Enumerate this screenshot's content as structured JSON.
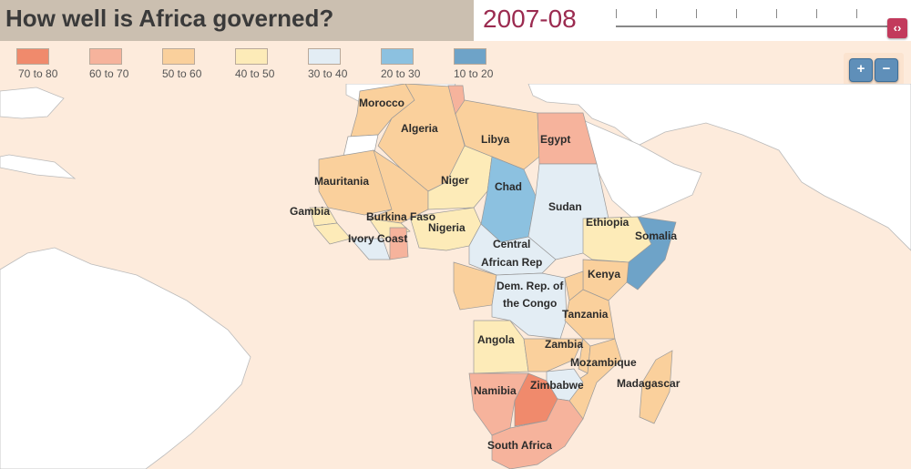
{
  "title": "How well is Africa governed?",
  "year": "2007-08",
  "legend": [
    {
      "label": "70 to 80",
      "color": "#f08a6c"
    },
    {
      "label": "60 to 70",
      "color": "#f6b39c"
    },
    {
      "label": "50 to 60",
      "color": "#fad09c"
    },
    {
      "label": "40 to 50",
      "color": "#fdebb8"
    },
    {
      "label": "30 to 40",
      "color": "#e3edf4"
    },
    {
      "label": "20 to 30",
      "color": "#8cc1e0"
    },
    {
      "label": "10 to 20",
      "color": "#6ea3c8"
    }
  ],
  "zoom": {
    "in_icon": "zoom-in-icon",
    "out_icon": "zoom-out-icon",
    "in_glyph": "+",
    "out_glyph": "−"
  },
  "slider": {
    "handle_glyph": "‹›",
    "position": 1.0
  },
  "countries": {
    "morocco": "Morocco",
    "algeria": "Algeria",
    "libya": "Libya",
    "egypt": "Egypt",
    "mauritania": "Mauritania",
    "niger": "Niger",
    "chad": "Chad",
    "sudan": "Sudan",
    "gambia": "Gambia",
    "burkina_faso": "Burkina Faso",
    "nigeria": "Nigeria",
    "ethiopia": "Ethiopia",
    "ivory_coast": "Ivory Coast",
    "somalia": "Somalia",
    "car_line1": "Central",
    "car_line2": "African Rep",
    "kenya": "Kenya",
    "drc_line1": "Dem. Rep. of",
    "drc_line2": "the Congo",
    "tanzania": "Tanzania",
    "angola": "Angola",
    "zambia": "Zambia",
    "mozambique": "Mozambique",
    "madagascar": "Madagascar",
    "namibia": "Namibia",
    "zimbabwe": "Zimbabwe",
    "south_africa": "South Africa"
  }
}
